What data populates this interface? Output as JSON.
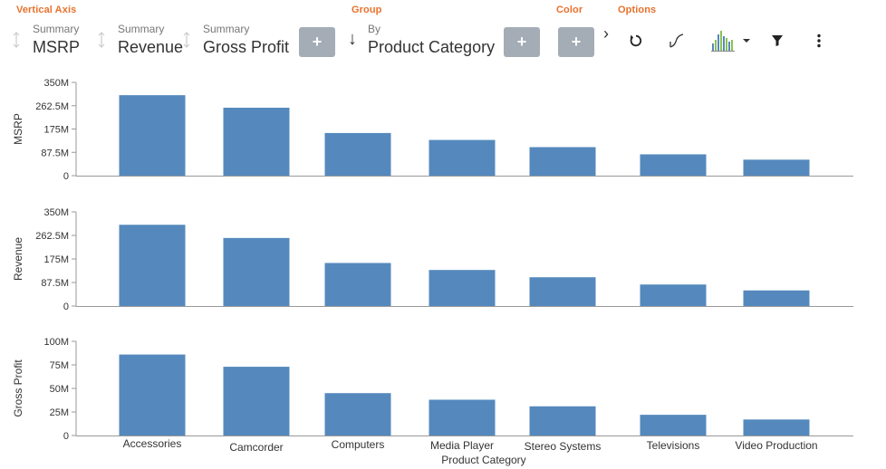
{
  "toolbar": {
    "section_labels": {
      "vertical_axis": "Vertical Axis",
      "group": "Group",
      "color": "Color",
      "options": "Options"
    },
    "fields": [
      {
        "sub": "Summary",
        "main": "MSRP"
      },
      {
        "sub": "Summary",
        "main": "Revenue"
      },
      {
        "sub": "Summary",
        "main": "Gross Profit"
      }
    ],
    "group_field": {
      "sub": "By",
      "main": "Product Category"
    },
    "add_label": "+",
    "expand_label": "›",
    "sort_arrow": "↓",
    "icons": [
      "plus-icon",
      "chevron-right-icon",
      "reset-icon",
      "curve-icon",
      "chart-type-icon",
      "filter-icon",
      "more-vertical-icon"
    ],
    "accent_color": "#e8712d"
  },
  "chart_data": {
    "type": "bar",
    "xlabel": "Product Category",
    "categories": [
      "Accessories",
      "Camcorder",
      "Computers",
      "Media Player",
      "Stereo Systems",
      "Televisions",
      "Video Production"
    ],
    "bar_color": "#5589bd",
    "panels": [
      {
        "ylabel": "MSRP",
        "ylim": [
          0,
          350
        ],
        "ticks": [
          "0",
          "87.5M",
          "175M",
          "262.5M",
          "350M"
        ],
        "values": [
          302,
          255,
          160,
          134,
          107,
          80,
          60
        ]
      },
      {
        "ylabel": "Revenue",
        "ylim": [
          0,
          350
        ],
        "ticks": [
          "0",
          "87.5M",
          "175M",
          "262.5M",
          "350M"
        ],
        "values": [
          302,
          253,
          160,
          134,
          107,
          80,
          58
        ]
      },
      {
        "ylabel": "Gross Profit",
        "ylim": [
          0,
          100
        ],
        "ticks": [
          "0",
          "25M",
          "50M",
          "75M",
          "100M"
        ],
        "values": [
          86,
          73,
          45,
          38,
          31,
          22,
          17
        ]
      }
    ]
  }
}
